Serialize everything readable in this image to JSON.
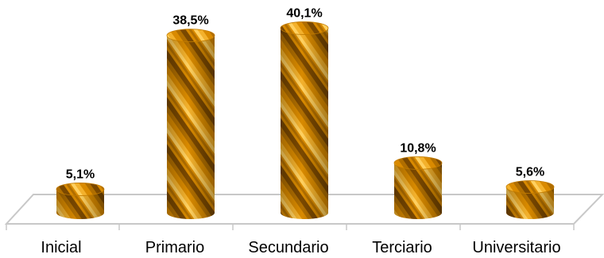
{
  "chart_data": {
    "type": "bar",
    "categories": [
      "Inicial",
      "Primario",
      "Secundario",
      "Terciario",
      "Universitario"
    ],
    "values": [
      5.1,
      38.5,
      40.1,
      10.8,
      5.6
    ],
    "data_labels": [
      "5,1%",
      "38,5%",
      "40,1%",
      "10,8%",
      "5,6%"
    ],
    "bar_shape": "cylinder",
    "bar_color": "#d98a00",
    "floor_color": "#c8c8c8",
    "grid": false,
    "legend": "none"
  }
}
